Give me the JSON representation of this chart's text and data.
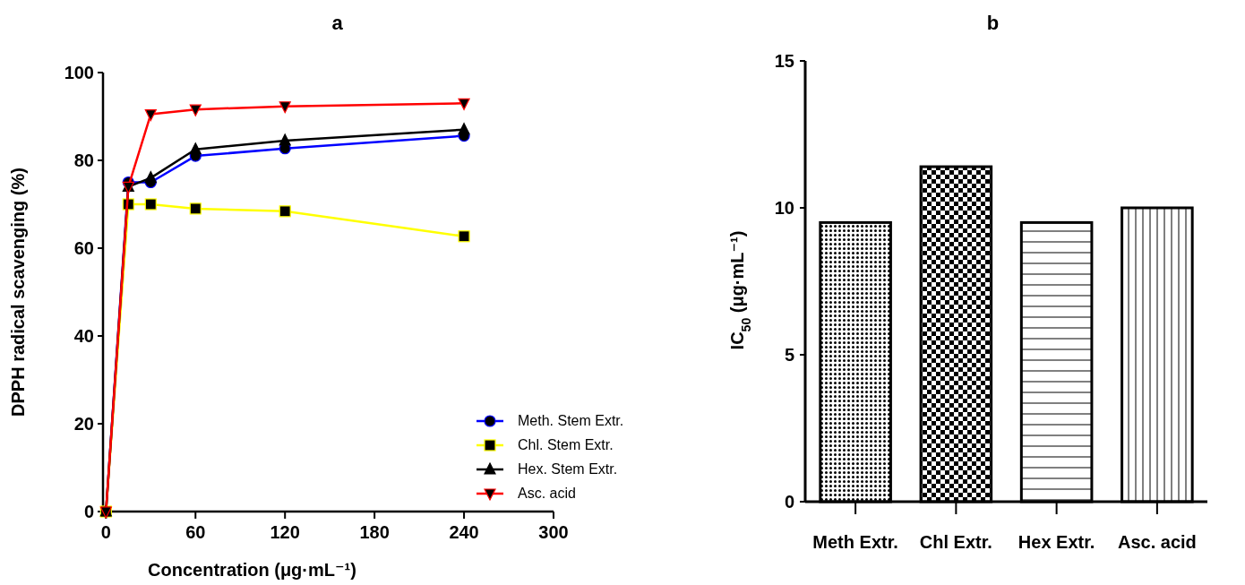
{
  "chart_data": [
    {
      "type": "line",
      "title": "a",
      "xlabel": "Concentration (μg·mL⁻¹)",
      "ylabel": "DPPH radical scavenging (%)",
      "x": [
        0,
        15,
        30,
        60,
        120,
        240
      ],
      "xlim": [
        -2,
        300
      ],
      "xticks": [
        0,
        60,
        120,
        180,
        240,
        300
      ],
      "ylim": [
        0,
        100
      ],
      "yticks": [
        0,
        20,
        40,
        60,
        80,
        100
      ],
      "legend": "bottom right",
      "grid": false,
      "series": [
        {
          "name": "Meth. Stem Extr.",
          "color": "#0000ff",
          "marker": "circle",
          "values": [
            0,
            75,
            75,
            81,
            82.7,
            85.6
          ]
        },
        {
          "name": "Chl. Stem Extr.",
          "color": "#ffff00",
          "marker": "square",
          "values": [
            0,
            70,
            70,
            69,
            68.4,
            62.7
          ]
        },
        {
          "name": "Hex. Stem Extr.",
          "color": "#000000",
          "marker": "triangle",
          "values": [
            0,
            74,
            76,
            82.5,
            84.5,
            87
          ]
        },
        {
          "name": "Asc. acid",
          "color": "#ff0000",
          "marker": "triangle-down",
          "values": [
            0,
            74,
            90.5,
            91.6,
            92.3,
            93
          ]
        }
      ]
    },
    {
      "type": "bar",
      "title": "b",
      "ylabel": "IC$_{50}$  (μg·mL⁻¹)",
      "categories": [
        "Meth Extr.",
        "Chl Extr.",
        "Hex Extr.",
        "Asc. acid"
      ],
      "values": [
        9.5,
        11.4,
        9.5,
        10.0
      ],
      "color": "#000000",
      "ylim": [
        0,
        15
      ],
      "yticks": [
        0,
        5,
        10,
        15
      ],
      "grid": false
    }
  ]
}
